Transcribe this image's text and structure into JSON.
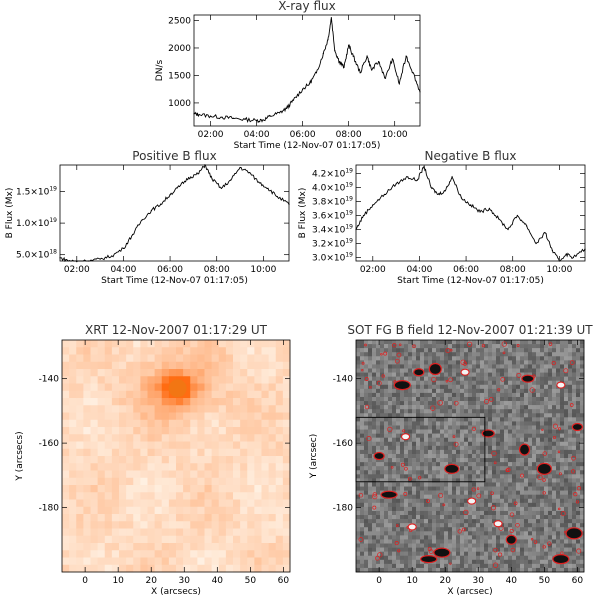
{
  "chart_data": [
    {
      "id": "xray",
      "type": "line",
      "title": "X-ray flux",
      "xlabel": "Start Time (12-Nov-07 01:17:05)",
      "ylabel": "DN/s",
      "xlim": [
        1.28,
        11.1
      ],
      "ylim": [
        580,
        2600
      ],
      "xticks": [
        2,
        4,
        6,
        8,
        10
      ],
      "xtick_labels": [
        "02:00",
        "04:00",
        "06:00",
        "08:00",
        "10:00"
      ],
      "yticks": [
        1000,
        1500,
        2000,
        2500
      ],
      "ytick_labels": [
        "1000",
        "1500",
        "2000",
        "2500"
      ],
      "series": [
        {
          "name": "X-ray flux",
          "x": [
            1.28,
            1.5,
            2.0,
            2.5,
            3.0,
            3.5,
            4.0,
            4.3,
            4.6,
            5.0,
            5.3,
            5.6,
            6.0,
            6.3,
            6.6,
            6.9,
            7.1,
            7.25,
            7.4,
            7.6,
            7.8,
            8.0,
            8.2,
            8.5,
            8.8,
            9.0,
            9.3,
            9.6,
            9.9,
            10.2,
            10.5,
            10.8,
            11.1
          ],
          "values": [
            800,
            790,
            760,
            740,
            720,
            700,
            680,
            690,
            760,
            820,
            900,
            1050,
            1250,
            1350,
            1550,
            1900,
            2150,
            2550,
            1950,
            1750,
            1650,
            2050,
            1850,
            1550,
            1850,
            1600,
            1750,
            1450,
            1800,
            1350,
            1850,
            1550,
            1200
          ]
        }
      ]
    },
    {
      "id": "posb",
      "type": "line",
      "title": "Positive B flux",
      "xlabel": "Start Time (12-Nov-07 01:17:05)",
      "ylabel": "B Flux (Mx)",
      "xlim": [
        1.28,
        11.1
      ],
      "ylim": [
        0.4,
        1.92
      ],
      "xticks": [
        2,
        4,
        6,
        8,
        10
      ],
      "xtick_labels": [
        "02:00",
        "04:00",
        "06:00",
        "08:00",
        "10:00"
      ],
      "yticks": [
        0.5,
        1.0,
        1.5
      ],
      "ytick_labels": [
        "5.0×10",
        "1.0×10",
        "1.5×10"
      ],
      "ytick_exponents": [
        "18",
        "19",
        "19"
      ],
      "series": [
        {
          "name": "Positive B flux",
          "x": [
            1.28,
            1.6,
            2.0,
            2.5,
            3.0,
            3.5,
            4.0,
            4.4,
            4.8,
            5.2,
            5.6,
            6.0,
            6.4,
            6.8,
            7.2,
            7.5,
            7.8,
            8.2,
            8.6,
            9.0,
            9.4,
            9.8,
            10.2,
            10.6,
            11.1
          ],
          "values": [
            0.45,
            0.41,
            0.39,
            0.4,
            0.43,
            0.48,
            0.6,
            0.82,
            1.05,
            1.2,
            1.3,
            1.45,
            1.58,
            1.72,
            1.78,
            1.92,
            1.7,
            1.55,
            1.68,
            1.88,
            1.8,
            1.65,
            1.55,
            1.42,
            1.3
          ]
        }
      ]
    },
    {
      "id": "negb",
      "type": "line",
      "title": "Negative B flux",
      "xlabel": "Start Time (12-Nov-07 01:17:05)",
      "ylabel": "B Flux (Mx)",
      "xlim": [
        1.28,
        11.1
      ],
      "ylim": [
        2.95,
        4.32
      ],
      "xticks": [
        2,
        4,
        6,
        8,
        10
      ],
      "xtick_labels": [
        "02:00",
        "04:00",
        "06:00",
        "08:00",
        "10:00"
      ],
      "yticks": [
        3.0,
        3.2,
        3.4,
        3.6,
        3.8,
        4.0,
        4.2
      ],
      "ytick_labels": [
        "3.0×10",
        "3.2×10",
        "3.4×10",
        "3.6×10",
        "3.8×10",
        "4.0×10",
        "4.2×10"
      ],
      "ytick_exponents": [
        "19",
        "19",
        "19",
        "19",
        "19",
        "19",
        "19"
      ],
      "series": [
        {
          "name": "Negative B flux",
          "x": [
            1.28,
            1.6,
            2.0,
            2.5,
            3.0,
            3.5,
            3.9,
            4.2,
            4.5,
            4.8,
            5.1,
            5.4,
            5.8,
            6.2,
            6.6,
            7.0,
            7.4,
            7.8,
            8.2,
            8.6,
            9.0,
            9.4,
            9.7,
            10.0,
            10.3,
            10.6,
            11.1
          ],
          "values": [
            3.4,
            3.6,
            3.75,
            3.9,
            4.05,
            4.15,
            4.1,
            4.3,
            4.0,
            3.9,
            3.95,
            4.15,
            3.85,
            3.75,
            3.65,
            3.7,
            3.55,
            3.4,
            3.6,
            3.45,
            3.2,
            3.35,
            3.1,
            2.95,
            3.05,
            3.0,
            3.12
          ]
        }
      ]
    },
    {
      "id": "xrt",
      "type": "heatmap",
      "title": "XRT 12-Nov-2007 01:17:29 UT",
      "xlabel": "X (arcsecs)",
      "ylabel": "Y (arcsecs)",
      "xlim": [
        -7,
        62
      ],
      "ylim": [
        -200,
        -128
      ],
      "xticks": [
        0,
        10,
        20,
        30,
        40,
        50,
        60
      ],
      "xtick_labels": [
        "0",
        "10",
        "20",
        "30",
        "40",
        "50",
        "60"
      ],
      "yticks": [
        -140,
        -160,
        -180
      ],
      "ytick_labels": [
        "-140",
        "-160",
        "-180"
      ],
      "bright_source": {
        "x": 28,
        "y": -143
      }
    },
    {
      "id": "sot",
      "type": "heatmap",
      "title": "SOT FG B field 12-Nov-2007 01:21:39 UT",
      "xlabel": "X (arcsec)",
      "ylabel": "Y (arcsec)",
      "xlim": [
        -7,
        62
      ],
      "ylim": [
        -200,
        -128
      ],
      "xticks": [
        0,
        10,
        20,
        30,
        40,
        50,
        60
      ],
      "xtick_labels": [
        "0",
        "10",
        "20",
        "30",
        "40",
        "50",
        "60"
      ],
      "yticks": [
        -140,
        -160,
        -180
      ],
      "ytick_labels": [
        "-140",
        "-160",
        "-180"
      ],
      "region_box": {
        "x0": -7,
        "x1": 32,
        "y0": -172,
        "y1": -152
      },
      "features": [
        {
          "x": 12,
          "y": -138,
          "polarity": "neg"
        },
        {
          "x": 17,
          "y": -137,
          "polarity": "neg"
        },
        {
          "x": 26,
          "y": -138,
          "polarity": "pos"
        },
        {
          "x": 7,
          "y": -142,
          "polarity": "neg"
        },
        {
          "x": 0,
          "y": -164,
          "polarity": "neg"
        },
        {
          "x": 8,
          "y": -158,
          "polarity": "pos"
        },
        {
          "x": 15,
          "y": -196,
          "polarity": "neg"
        },
        {
          "x": 19,
          "y": -194,
          "polarity": "neg"
        },
        {
          "x": 44,
          "y": -162,
          "polarity": "neg"
        },
        {
          "x": 55,
          "y": -196,
          "polarity": "neg"
        },
        {
          "x": 59,
          "y": -188,
          "polarity": "neg"
        },
        {
          "x": 60,
          "y": -155,
          "polarity": "neg"
        },
        {
          "x": 36,
          "y": -185,
          "polarity": "pos"
        },
        {
          "x": 40,
          "y": -190,
          "polarity": "neg"
        },
        {
          "x": 3,
          "y": -176,
          "polarity": "neg"
        },
        {
          "x": 28,
          "y": -178,
          "polarity": "pos"
        },
        {
          "x": 50,
          "y": -168,
          "polarity": "neg"
        },
        {
          "x": 55,
          "y": -142,
          "polarity": "pos"
        },
        {
          "x": 33,
          "y": -157,
          "polarity": "neg"
        },
        {
          "x": 22,
          "y": -168,
          "polarity": "neg"
        },
        {
          "x": 45,
          "y": -140,
          "polarity": "neg"
        },
        {
          "x": 10,
          "y": -186,
          "polarity": "pos"
        }
      ]
    }
  ]
}
